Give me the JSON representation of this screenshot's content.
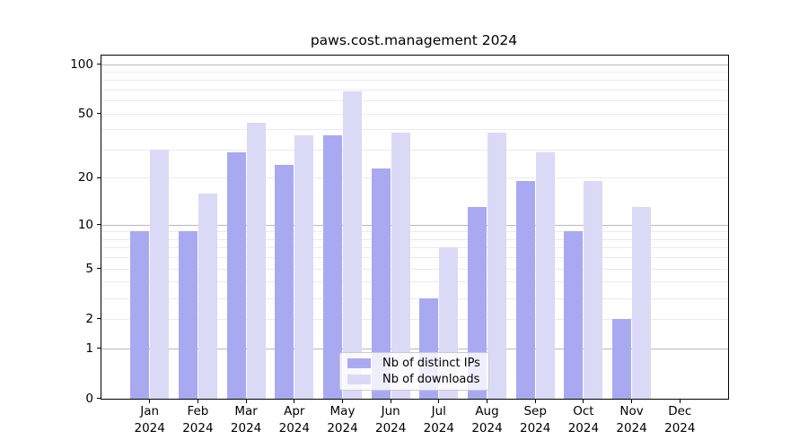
{
  "figure_title": "paws.cost.management 2024",
  "chart_data": {
    "type": "bar",
    "title": "paws.cost.management 2024",
    "categories": [
      "Jan",
      "Feb",
      "Mar",
      "Apr",
      "May",
      "Jun",
      "Jul",
      "Aug",
      "Sep",
      "Oct",
      "Nov",
      "Dec"
    ],
    "x_year_label": "2024",
    "series": [
      {
        "name": "Nb of distinct IPs",
        "color": "#a9a9f1",
        "values": [
          9,
          9,
          29,
          24,
          37,
          23,
          3,
          13,
          19,
          9,
          2,
          0
        ]
      },
      {
        "name": "Nb of downloads",
        "color": "#dadaf6",
        "values": [
          30,
          16,
          44,
          37,
          68,
          38,
          7,
          38,
          29,
          19,
          13,
          0
        ]
      }
    ],
    "yticks": [
      100,
      50,
      20,
      10,
      5,
      2,
      1,
      0
    ],
    "ylim": [
      0,
      112
    ],
    "yscale": "log10(1+v)",
    "grid": {
      "major": [
        1,
        10,
        100
      ],
      "minor": [
        2,
        3,
        4,
        5,
        6,
        7,
        8,
        9,
        20,
        30,
        40,
        50,
        60,
        70,
        80,
        90
      ],
      "major_color": "#b9b9b9",
      "minor_color": "#ebebeb"
    },
    "legend": {
      "position": "lower center"
    }
  },
  "colors": {
    "axis": "#000000",
    "background": "#ffffff",
    "text": "#000000"
  }
}
